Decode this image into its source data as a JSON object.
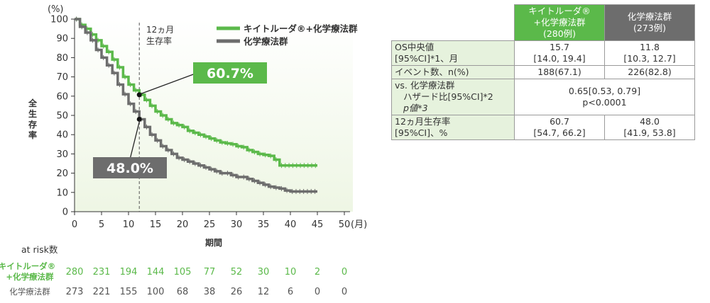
{
  "chart_data": {
    "type": "line",
    "subtype": "kaplan-meier",
    "y_unit": "(%)",
    "ylabel": "全生存率",
    "xlabel": "期間",
    "x_unit": "(月)",
    "xlim": [
      0,
      50
    ],
    "ylim": [
      0,
      100
    ],
    "x_ticks": [
      0,
      5,
      10,
      15,
      20,
      25,
      30,
      35,
      40,
      45,
      50
    ],
    "y_ticks": [
      0,
      10,
      20,
      30,
      40,
      50,
      60,
      70,
      80,
      90,
      100
    ],
    "grid": false,
    "legend_position": "top-right",
    "reference_line": {
      "x": 12,
      "label_line1": "12ヵ月",
      "label_line2": "生存率"
    },
    "series": [
      {
        "name": "キイトルーダ®+化学療法群",
        "color": "#5bb94a",
        "points": [
          [
            0,
            100
          ],
          [
            1,
            97
          ],
          [
            2,
            95
          ],
          [
            3,
            92
          ],
          [
            4,
            89
          ],
          [
            5,
            86
          ],
          [
            6,
            83
          ],
          [
            7,
            79
          ],
          [
            8,
            75
          ],
          [
            9,
            70
          ],
          [
            10,
            66
          ],
          [
            11,
            63
          ],
          [
            12,
            60.7
          ],
          [
            13,
            58
          ],
          [
            14,
            55
          ],
          [
            15,
            52
          ],
          [
            16,
            50
          ],
          [
            17,
            48
          ],
          [
            18,
            46
          ],
          [
            19,
            45
          ],
          [
            20,
            44
          ],
          [
            21,
            42
          ],
          [
            22,
            41
          ],
          [
            23,
            40
          ],
          [
            24,
            39
          ],
          [
            25,
            38
          ],
          [
            26,
            37
          ],
          [
            27,
            36
          ],
          [
            28,
            35.5
          ],
          [
            29,
            35
          ],
          [
            30,
            34
          ],
          [
            31,
            33.5
          ],
          [
            32,
            32
          ],
          [
            33,
            31
          ],
          [
            34,
            30
          ],
          [
            35,
            29.5
          ],
          [
            36,
            29
          ],
          [
            37,
            27
          ],
          [
            38,
            24
          ],
          [
            45,
            24
          ]
        ],
        "callout": "60.7%"
      },
      {
        "name": "化学療法群",
        "color": "#6d6d6d",
        "points": [
          [
            0,
            100
          ],
          [
            1,
            96
          ],
          [
            2,
            93
          ],
          [
            3,
            89
          ],
          [
            4,
            84
          ],
          [
            5,
            80
          ],
          [
            6,
            76
          ],
          [
            7,
            72
          ],
          [
            8,
            66
          ],
          [
            9,
            61
          ],
          [
            10,
            56
          ],
          [
            11,
            52
          ],
          [
            12,
            48
          ],
          [
            13,
            44
          ],
          [
            14,
            40
          ],
          [
            15,
            37
          ],
          [
            16,
            34
          ],
          [
            17,
            32
          ],
          [
            18,
            30
          ],
          [
            19,
            28
          ],
          [
            20,
            27
          ],
          [
            21,
            26
          ],
          [
            22,
            25
          ],
          [
            23,
            24
          ],
          [
            24,
            23
          ],
          [
            25,
            22
          ],
          [
            26,
            21
          ],
          [
            27,
            20
          ],
          [
            28,
            20
          ],
          [
            29,
            19
          ],
          [
            30,
            18
          ],
          [
            31,
            18
          ],
          [
            32,
            17
          ],
          [
            33,
            16
          ],
          [
            34,
            15
          ],
          [
            35,
            14
          ],
          [
            36,
            13
          ],
          [
            37,
            12.5
          ],
          [
            38,
            12
          ],
          [
            39,
            11
          ],
          [
            40,
            10.5
          ],
          [
            45,
            10.5
          ]
        ],
        "callout": "48.0%"
      }
    ],
    "at_risk": {
      "title": "at risk数",
      "rows": [
        {
          "label_line1": "キイトルーダ®",
          "label_line2": "+化学療法群",
          "color": "#5bb94a",
          "values": [
            "280",
            "231",
            "194",
            "144",
            "105",
            "77",
            "52",
            "30",
            "10",
            "2",
            "0"
          ]
        },
        {
          "label_line1": "化学療法群",
          "label_line2": "",
          "color": "#6d6d6d",
          "values": [
            "273",
            "221",
            "155",
            "100",
            "68",
            "38",
            "26",
            "12",
            "6",
            "0",
            "0"
          ]
        }
      ]
    }
  },
  "table": {
    "header": {
      "col1": [
        "キイトルーダ®",
        "+化学療法群",
        "(280例)"
      ],
      "col2": [
        "化学療法群",
        "(273例)"
      ]
    },
    "rows": [
      {
        "label": [
          "OS中央値",
          "[95%CI]*1、月"
        ],
        "col1": [
          "15.7",
          "[14.0, 19.4]"
        ],
        "col2": [
          "11.8",
          "[10.3, 12.7]"
        ]
      },
      {
        "label": [
          "イベント数、n(%)"
        ],
        "col1": [
          "188(67.1)"
        ],
        "col2": [
          "226(82.8)"
        ]
      },
      {
        "label": [
          "vs. 化学療法群",
          "ハザード比[95%CI]*2",
          "p値*3"
        ],
        "merged": [
          "0.65[0.53, 0.79]",
          "p<0.0001"
        ]
      },
      {
        "label": [
          "12ヵ月生存率",
          "[95%CI]、%"
        ],
        "col1": [
          "60.7",
          "[54.7, 66.2]"
        ],
        "col2": [
          "48.0",
          "[41.9, 53.8]"
        ]
      }
    ]
  }
}
